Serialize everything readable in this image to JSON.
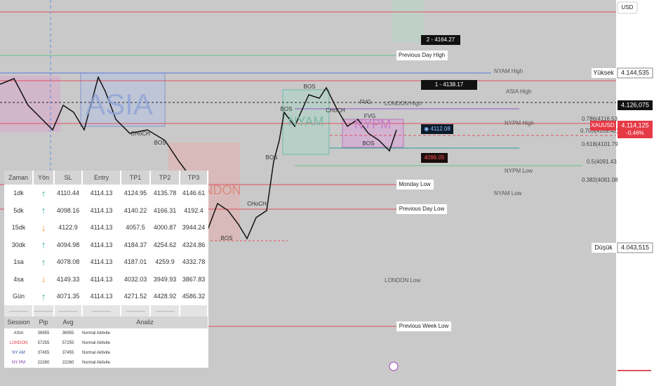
{
  "currency": "USD",
  "price_scale": {
    "high_label": "Yüksek",
    "high_value": "4.144,535",
    "line_value": "4.126,075",
    "symbol": "XAUUSD",
    "last_value": "4.114,125",
    "change": "-0,46%",
    "low_label": "Düşük",
    "low_value": "4.043,515"
  },
  "levels": {
    "target_2": "2 - 4164.27",
    "prev_day_high": "Previous Day High",
    "nyam_high": "NYAM High",
    "target_1": "1 - 4138.17",
    "asia_high": "ASIA High",
    "london_high": "LONDON High",
    "nypm_high": "NYPM High",
    "fib_786": "0.786(4116.53",
    "fib_705": "0.705(4109.42)",
    "fib_618": "0.618(4101.79",
    "fib_5": "0.5(4091.43",
    "fib_382": "0.382(4081.08",
    "nypm_low": "NYPM Low",
    "nyam_low": "NYAM Low",
    "monday_low": "Monday Low",
    "prev_day_low": "Previous Day Low",
    "london_low": "LONDON Low",
    "prev_week_low": "Previous Week Low",
    "entry_tag": "◉ 4112.08",
    "stop_tag": "4096.05"
  },
  "chart_text": {
    "asia": "ASIA",
    "london": "LONDON",
    "nyam": "NYAM",
    "nypm": "NYPM",
    "bos": "BOS",
    "choch": "CHoCH",
    "fvg": "FVG"
  },
  "signal_table": {
    "headers": [
      "Zaman",
      "Yön",
      "SL",
      "Entry",
      "TP1",
      "TP2",
      "TP3"
    ],
    "rows": [
      [
        "1dk",
        "↑",
        "4110.44",
        "4114.13",
        "4124.95",
        "4135.78",
        "4146.61"
      ],
      [
        "5dk",
        "↑",
        "4098.16",
        "4114.13",
        "4140.22",
        "4166.31",
        "4192.4"
      ],
      [
        "15dk",
        "↓",
        "4122.9",
        "4114.13",
        "4057.5",
        "4000.87",
        "3944.24"
      ],
      [
        "30dk",
        "↑",
        "4094.98",
        "4114.13",
        "4184.37",
        "4254.62",
        "4324.86"
      ],
      [
        "1sa",
        "↑",
        "4078.08",
        "4114.13",
        "4187.01",
        "4259.9",
        "4332.78"
      ],
      [
        "4sa",
        "↓",
        "4149.33",
        "4114.13",
        "4032.03",
        "3949.93",
        "3867.83"
      ],
      [
        "Gün",
        "↑",
        "4071.35",
        "4114.13",
        "4271.52",
        "4428.92",
        "4586.32"
      ]
    ],
    "separator": "———"
  },
  "session_table": {
    "headers": [
      "Session",
      "Pip",
      "Avg",
      "Analiz"
    ],
    "rows": [
      [
        "ASIA",
        "36955",
        "36955",
        "Normal Aktivite"
      ],
      [
        "LONDON",
        "57255",
        "57255",
        "Normal Aktivite"
      ],
      [
        "NY AM",
        "37455",
        "37455",
        "Normal Aktivite"
      ],
      [
        "NY PM",
        "22260",
        "22260",
        "Normal Aktivite"
      ]
    ]
  }
}
